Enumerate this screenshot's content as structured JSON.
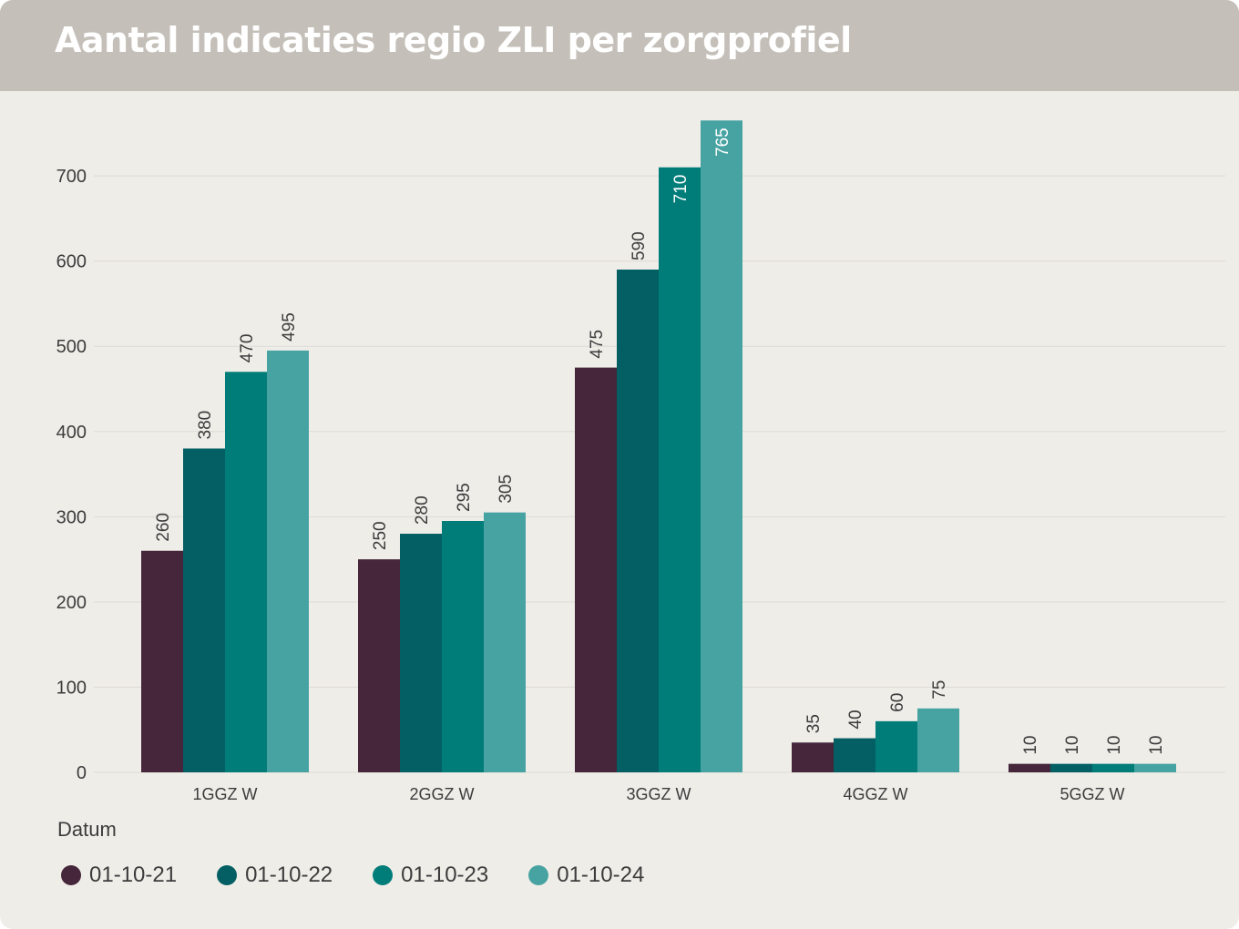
{
  "header": {
    "title": "Aantal indicaties regio ZLI per zorgprofiel"
  },
  "legend": {
    "title": "Datum",
    "placement": "bottom-left"
  },
  "colors": {
    "header_bg": "#c4bfb8",
    "chart_bg": "#efede8",
    "grid": "#dedbd5",
    "series": [
      "#45263a",
      "#035f64",
      "#007d79",
      "#47a3a2"
    ]
  },
  "chart_data": {
    "type": "bar",
    "title": "Aantal indicaties regio ZLI per zorgprofiel",
    "xlabel": "",
    "ylabel": "",
    "categories": [
      "1GGZ W",
      "2GGZ W",
      "3GGZ W",
      "4GGZ W",
      "5GGZ W"
    ],
    "series": [
      {
        "name": "01-10-21",
        "values": [
          260,
          250,
          475,
          35,
          10
        ]
      },
      {
        "name": "01-10-22",
        "values": [
          380,
          280,
          590,
          40,
          10
        ]
      },
      {
        "name": "01-10-23",
        "values": [
          470,
          295,
          710,
          60,
          10
        ]
      },
      {
        "name": "01-10-24",
        "values": [
          495,
          305,
          765,
          75,
          10
        ]
      }
    ],
    "ylim": [
      0,
      765
    ],
    "yticks": [
      0,
      100,
      200,
      300,
      400,
      500,
      600,
      700
    ],
    "grid": true,
    "data_labels": true,
    "legend_title": "Datum",
    "legend_position": "bottom"
  }
}
